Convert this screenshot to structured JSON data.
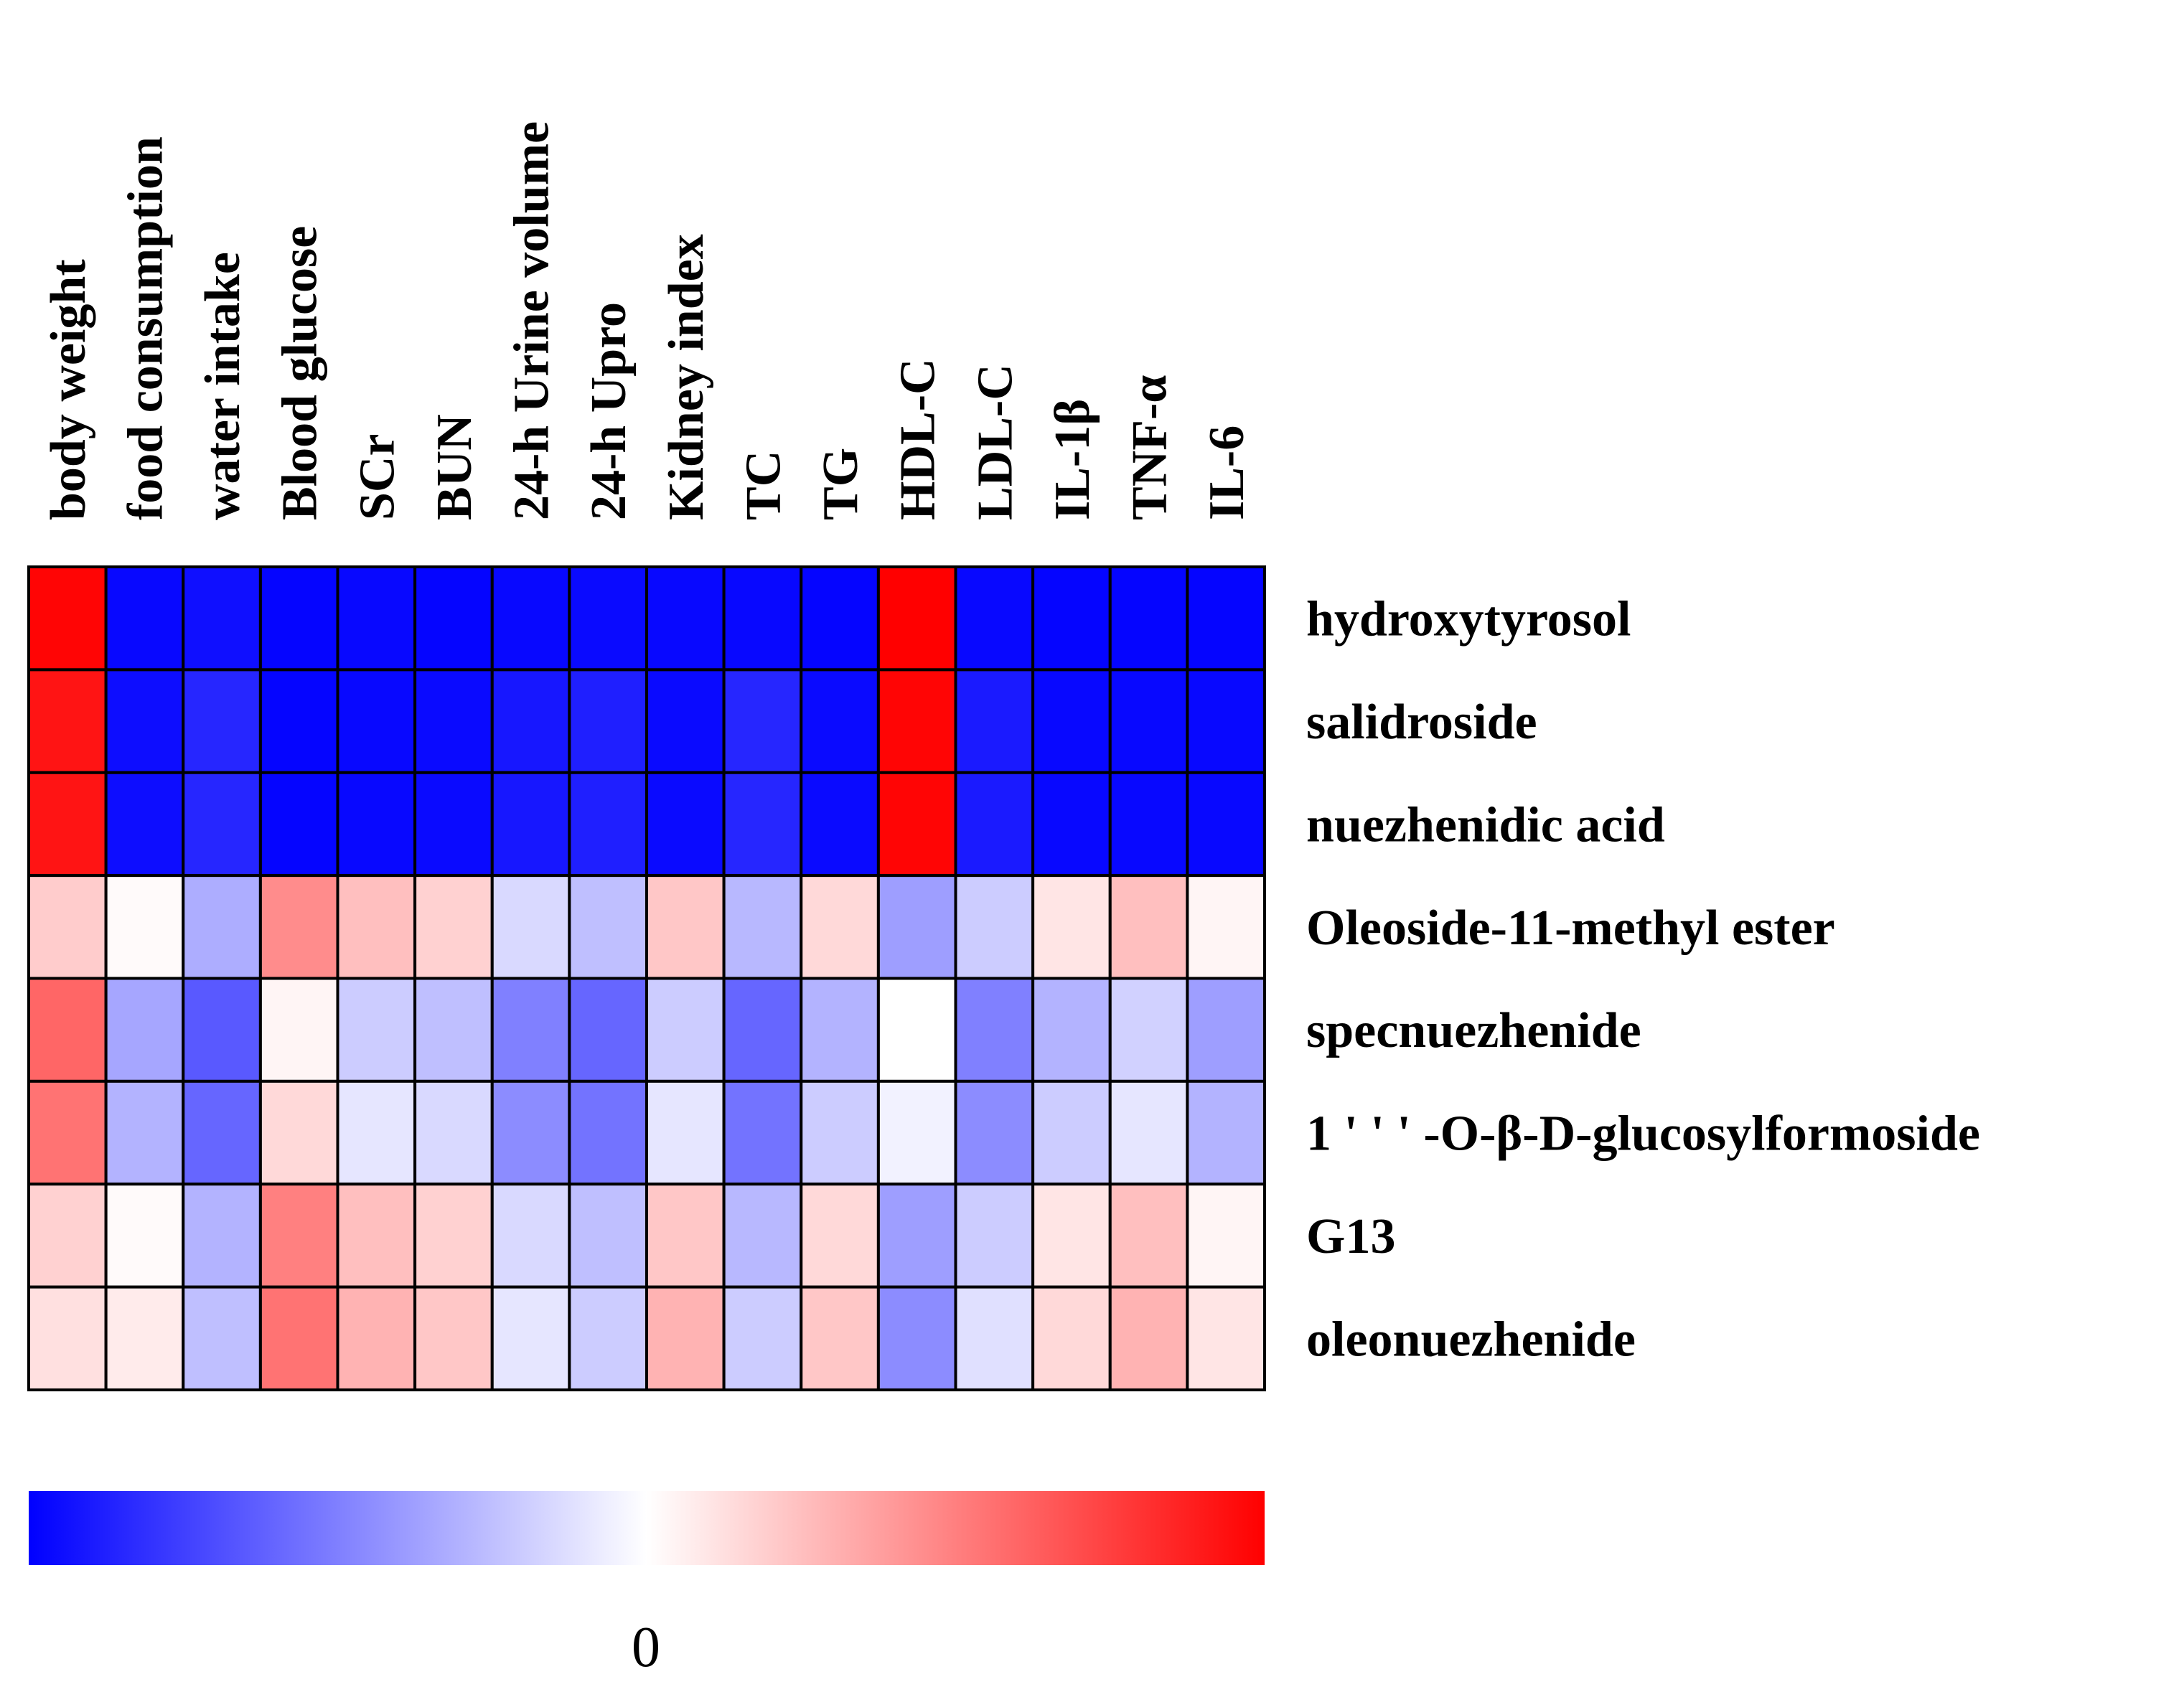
{
  "chart_data": {
    "type": "heatmap",
    "columns": [
      "body weight",
      "food consumption",
      "water intake",
      "Blood glucose",
      "SCr",
      "BUN",
      "24-h Urine volume",
      "24-h Upro",
      "Kidney index",
      "TC",
      "TG",
      "HDL-C",
      "LDL-C",
      "IL-1β",
      "TNF-α",
      "IL-6"
    ],
    "rows": [
      "hydroxytyrosol",
      "salidroside",
      "nuezhenidic acid",
      "Oleoside-11-methyl ester",
      "specnuezhenide",
      "1 ' ' ' -O-β-D-glucosylformoside",
      "G13",
      "oleonuezhenide"
    ],
    "values": [
      [
        0.98,
        -0.97,
        -0.94,
        -0.98,
        -0.97,
        -0.98,
        -0.97,
        -0.96,
        -0.97,
        -0.97,
        -0.98,
        1.0,
        -0.97,
        -0.98,
        -0.98,
        -0.98
      ],
      [
        0.92,
        -0.95,
        -0.85,
        -0.98,
        -0.97,
        -0.96,
        -0.91,
        -0.88,
        -0.96,
        -0.85,
        -0.96,
        0.98,
        -0.9,
        -0.97,
        -0.97,
        -0.97
      ],
      [
        0.92,
        -0.95,
        -0.85,
        -0.98,
        -0.97,
        -0.96,
        -0.91,
        -0.88,
        -0.96,
        -0.85,
        -0.96,
        0.98,
        -0.9,
        -0.97,
        -0.97,
        -0.97
      ],
      [
        0.2,
        0.02,
        -0.32,
        0.45,
        0.25,
        0.18,
        -0.15,
        -0.25,
        0.22,
        -0.28,
        0.15,
        -0.38,
        -0.2,
        0.1,
        0.25,
        0.04
      ],
      [
        0.6,
        -0.35,
        -0.65,
        0.04,
        -0.2,
        -0.25,
        -0.5,
        -0.6,
        -0.2,
        -0.6,
        -0.3,
        0.0,
        -0.5,
        -0.3,
        -0.18,
        -0.38
      ],
      [
        0.55,
        -0.3,
        -0.6,
        0.15,
        -0.1,
        -0.15,
        -0.45,
        -0.55,
        -0.1,
        -0.55,
        -0.2,
        -0.05,
        -0.45,
        -0.2,
        -0.1,
        -0.3
      ],
      [
        0.18,
        0.02,
        -0.3,
        0.5,
        0.25,
        0.18,
        -0.15,
        -0.25,
        0.22,
        -0.28,
        0.15,
        -0.38,
        -0.2,
        0.1,
        0.25,
        0.04
      ],
      [
        0.12,
        0.08,
        -0.25,
        0.55,
        0.3,
        0.22,
        -0.1,
        -0.2,
        0.3,
        -0.2,
        0.22,
        -0.45,
        -0.12,
        0.15,
        0.3,
        0.1
      ]
    ],
    "colorscale": [
      "#0000ff",
      "#ffffff",
      "#ff0000"
    ],
    "vrange": [
      -1,
      1
    ],
    "legend": {
      "tick_labels": [
        "0"
      ],
      "tick_values": [
        0
      ]
    }
  }
}
